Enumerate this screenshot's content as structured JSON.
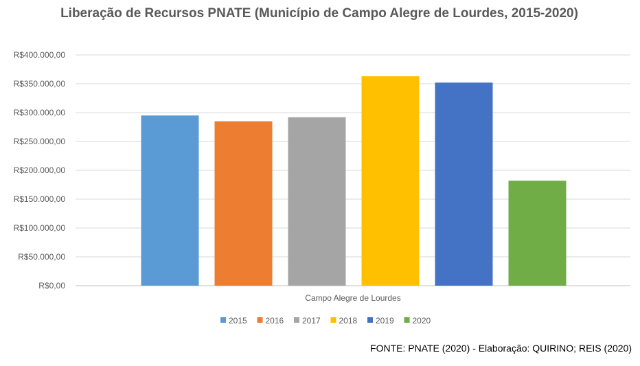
{
  "chart_data": {
    "type": "bar",
    "title": "Liberação de Recursos PNATE (Município de Campo Alegre de Lourdes, 2015-2020)",
    "categories": [
      "Campo Alegre de Lourdes"
    ],
    "series": [
      {
        "name": "2015",
        "values": [
          295000
        ],
        "color": "#5B9BD5"
      },
      {
        "name": "2016",
        "values": [
          285000
        ],
        "color": "#ED7D31"
      },
      {
        "name": "2017",
        "values": [
          292000
        ],
        "color": "#A5A5A5"
      },
      {
        "name": "2018",
        "values": [
          363000
        ],
        "color": "#FFC000"
      },
      {
        "name": "2019",
        "values": [
          352000
        ],
        "color": "#4472C4"
      },
      {
        "name": "2020",
        "values": [
          182000
        ],
        "color": "#70AD47"
      }
    ],
    "ylim": [
      0,
      400000
    ],
    "y_ticks": [
      "R$0,00",
      "R$50.000,00",
      "R$100.000,00",
      "R$150.000,00",
      "R$200.000,00",
      "R$250.000,00",
      "R$300.000,00",
      "R$350.000,00",
      "R$400.000,00"
    ],
    "grid": true,
    "legend": "bottom"
  },
  "source": "FONTE: PNATE (2020) - Elaboração: QUIRINO; REIS (2020)"
}
